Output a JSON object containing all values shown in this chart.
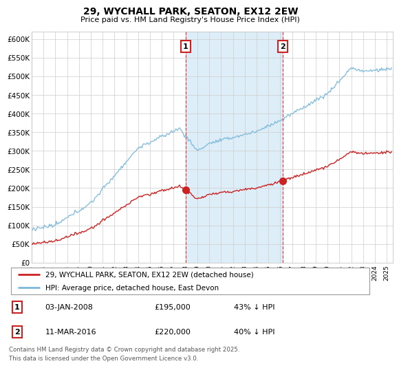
{
  "title": "29, WYCHALL PARK, SEATON, EX12 2EW",
  "subtitle": "Price paid vs. HM Land Registry's House Price Index (HPI)",
  "ylim": [
    0,
    620000
  ],
  "yticks": [
    0,
    50000,
    100000,
    150000,
    200000,
    250000,
    300000,
    350000,
    400000,
    450000,
    500000,
    550000,
    600000
  ],
  "ytick_labels": [
    "£0",
    "£50K",
    "£100K",
    "£150K",
    "£200K",
    "£250K",
    "£300K",
    "£350K",
    "£400K",
    "£450K",
    "£500K",
    "£550K",
    "£600K"
  ],
  "hpi_color": "#7ab8d9",
  "price_color": "#cc2222",
  "marker_color": "#cc2222",
  "vline_color": "#cc2222",
  "shade_color": "#ddeef8",
  "ann1_x": 2008.02,
  "ann2_x": 2016.2,
  "ann1_y": 195000,
  "ann2_y": 220000,
  "annotation1": {
    "label": "1",
    "date": "03-JAN-2008",
    "price": "£195,000",
    "pct": "43% ↓ HPI"
  },
  "annotation2": {
    "label": "2",
    "date": "11-MAR-2016",
    "price": "£220,000",
    "pct": "40% ↓ HPI"
  },
  "legend_line1": "29, WYCHALL PARK, SEATON, EX12 2EW (detached house)",
  "legend_line2": "HPI: Average price, detached house, East Devon",
  "footer1": "Contains HM Land Registry data © Crown copyright and database right 2025.",
  "footer2": "This data is licensed under the Open Government Licence v3.0.",
  "xstart": 1995.0,
  "xend": 2025.5,
  "xtick_years": [
    1995,
    1996,
    1997,
    1998,
    1999,
    2000,
    2001,
    2002,
    2003,
    2004,
    2005,
    2006,
    2007,
    2008,
    2009,
    2010,
    2011,
    2012,
    2013,
    2014,
    2015,
    2016,
    2017,
    2018,
    2019,
    2020,
    2021,
    2022,
    2023,
    2024,
    2025
  ]
}
